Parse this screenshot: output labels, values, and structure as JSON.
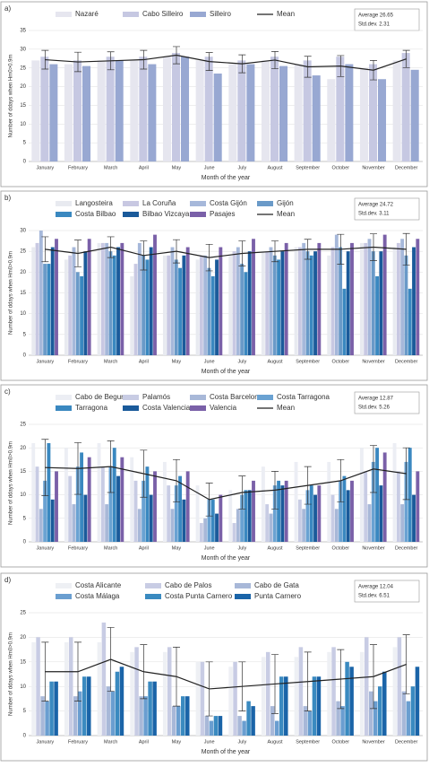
{
  "chart_data": [
    {
      "type": "bar",
      "label": "a)",
      "stats": [
        "Average 26.65",
        "Std.dev. 2.31"
      ],
      "y_label": "Number of ddays when Hm0>0.9m",
      "x_label": "Month of the year",
      "categories": [
        "January",
        "February",
        "March",
        "April",
        "May",
        "June",
        "July",
        "August",
        "September",
        "October",
        "November",
        "December"
      ],
      "ylim": [
        0,
        35
      ],
      "yticks": [
        0,
        5,
        10,
        15,
        20,
        25,
        30,
        35
      ],
      "grid": true,
      "series": [
        {
          "name": "Nazaré",
          "color": "#e6e6ef",
          "values": [
            27,
            26,
            27,
            27,
            28,
            27,
            26,
            27,
            26,
            22,
            25,
            27
          ]
        },
        {
          "name": "Cabo Silleiro",
          "color": "#c6c8e2",
          "values": [
            28,
            27,
            28,
            28,
            29,
            28,
            27,
            28,
            27,
            28,
            26,
            29
          ]
        },
        {
          "name": "Silleiro",
          "color": "#98a8d2",
          "values": [
            26,
            25.5,
            27,
            26,
            28,
            23.5,
            26,
            25.5,
            23,
            26,
            22,
            24.5
          ]
        },
        {
          "name": "Mean",
          "color": "#222222",
          "line": true,
          "values": [
            27.2,
            26.6,
            26.9,
            27.2,
            28.4,
            26.7,
            26.1,
            27.1,
            25.3,
            25.5,
            24.4,
            27.4
          ],
          "errors": [
            2.5,
            2.6,
            2.4,
            2.5,
            2.3,
            2.4,
            2.4,
            2.3,
            2.8,
            2.8,
            2.6,
            2.3
          ]
        }
      ]
    },
    {
      "type": "bar",
      "label": "b)",
      "stats": [
        "Average 24.72",
        "Std.dev. 3.11"
      ],
      "y_label": "Number of ddays when Hm0>0.9m",
      "x_label": "Month of the year",
      "categories": [
        "January",
        "February",
        "March",
        "April",
        "May",
        "June",
        "July",
        "August",
        "September",
        "October",
        "November",
        "December"
      ],
      "ylim": [
        0,
        30
      ],
      "yticks": [
        0,
        5,
        10,
        15,
        20,
        25,
        30
      ],
      "grid": true,
      "series": [
        {
          "name": "Langosteira",
          "color": "#e8eaf0",
          "values": [
            26,
            23,
            27,
            19,
            24,
            23,
            24,
            25,
            26,
            24,
            27,
            26
          ]
        },
        {
          "name": "La Coruña",
          "color": "#c8c8e2",
          "values": [
            27,
            24,
            27,
            22,
            24,
            24,
            25,
            25,
            26,
            26,
            27,
            27
          ]
        },
        {
          "name": "Costa Gijón",
          "color": "#a6b8da",
          "values": [
            30,
            26,
            27,
            27,
            26,
            24,
            26,
            26,
            27,
            29,
            28,
            28
          ]
        },
        {
          "name": "Gijón",
          "color": "#6a9ac8",
          "values": [
            22,
            20,
            25,
            24,
            23,
            21,
            22,
            24,
            25,
            26,
            25,
            24
          ]
        },
        {
          "name": "Costa Bilbao",
          "color": "#3a88c0",
          "values": [
            22,
            19,
            24,
            23,
            21,
            19,
            20,
            23,
            24,
            16,
            19,
            16
          ]
        },
        {
          "name": "Bilbao Vizcaya",
          "color": "#1a5a9a",
          "values": [
            26,
            25,
            26,
            26,
            24,
            23,
            25,
            25,
            25,
            25,
            25,
            26
          ]
        },
        {
          "name": "Pasajes",
          "color": "#7a60a8",
          "values": [
            28,
            28,
            27,
            29,
            26,
            26,
            28,
            27,
            27,
            27,
            29,
            28
          ]
        },
        {
          "name": "Mean",
          "color": "#222222",
          "line": true,
          "values": [
            25.5,
            24.5,
            26,
            24,
            25,
            23.5,
            24.5,
            25,
            25.5,
            25.5,
            26,
            25.5
          ],
          "errors": [
            3,
            3.2,
            2.5,
            3.5,
            2.8,
            3.2,
            3,
            2.5,
            2.4,
            3.6,
            3.2,
            3.8
          ]
        }
      ]
    },
    {
      "type": "bar",
      "label": "c)",
      "stats": [
        "Average 12.87",
        "Std.dev. 5.26"
      ],
      "y_label": "Number of ddays when Hm0>0.9m",
      "x_label": "Month of the year",
      "categories": [
        "January",
        "February",
        "March",
        "April",
        "May",
        "June",
        "July",
        "August",
        "September",
        "October",
        "November",
        "December"
      ],
      "ylim": [
        0,
        25
      ],
      "yticks": [
        0,
        5,
        10,
        15,
        20,
        25
      ],
      "grid": true,
      "series": [
        {
          "name": "Cabo de Begur",
          "color": "#eceef4",
          "values": [
            21,
            20,
            21,
            18,
            17,
            12,
            11,
            16,
            17,
            17,
            20,
            21
          ]
        },
        {
          "name": "Palamós",
          "color": "#c8cce4",
          "values": [
            16,
            14,
            16,
            13,
            12,
            4,
            4,
            8,
            9,
            10,
            15,
            15
          ]
        },
        {
          "name": "Costa Barcelona",
          "color": "#a8b8d8",
          "values": [
            7,
            8,
            8,
            7,
            7,
            5,
            7,
            6,
            7,
            7,
            8,
            8
          ]
        },
        {
          "name": "Costa Tarragona",
          "color": "#6aa2d2",
          "values": [
            13,
            16,
            16,
            13,
            12,
            9,
            10,
            12,
            11,
            13,
            17,
            17
          ]
        },
        {
          "name": "Tarragona",
          "color": "#3a88c0",
          "values": [
            21,
            19,
            20,
            16,
            14,
            9,
            11,
            13,
            12,
            14,
            20,
            20
          ]
        },
        {
          "name": "Costa Valencia",
          "color": "#1a5a9a",
          "values": [
            9,
            10,
            14,
            10,
            9,
            6,
            11,
            12,
            10,
            11,
            12,
            10
          ]
        },
        {
          "name": "Valencia",
          "color": "#7a60a8",
          "values": [
            15,
            18,
            18,
            15,
            15,
            10,
            13,
            13,
            12,
            13,
            19,
            15
          ]
        },
        {
          "name": "Mean",
          "color": "#222222",
          "line": true,
          "values": [
            15.8,
            15.6,
            16,
            14.5,
            13,
            9,
            10.5,
            11,
            12,
            13,
            15.5,
            14.5
          ],
          "errors": [
            6,
            5.5,
            5.5,
            5,
            4.5,
            3.5,
            3.5,
            4,
            4,
            4.5,
            5,
            5.5
          ]
        }
      ]
    },
    {
      "type": "bar",
      "label": "d)",
      "stats": [
        "Average 12.04",
        "Std.dev. 6.51"
      ],
      "y_label": "Number of ddays when Hm0>0.9m",
      "x_label": "Month of the year",
      "categories": [
        "January",
        "February",
        "March",
        "April",
        "May",
        "June",
        "July",
        "August",
        "September",
        "October",
        "November",
        "December"
      ],
      "ylim": [
        0,
        25
      ],
      "yticks": [
        0,
        5,
        10,
        15,
        20,
        25
      ],
      "grid": true,
      "series": [
        {
          "name": "Costa Alicante",
          "color": "#eef0f4",
          "values": [
            19,
            19,
            19,
            17,
            17,
            15,
            14,
            16,
            16,
            17,
            17,
            18
          ]
        },
        {
          "name": "Cabo de Palos",
          "color": "#c8cce4",
          "values": [
            20,
            20,
            23,
            18,
            18,
            15,
            15,
            17,
            18,
            18,
            20,
            20
          ]
        },
        {
          "name": "Cabo de Gata",
          "color": "#a8b8d8",
          "values": [
            8,
            8,
            10,
            8,
            6,
            4,
            4,
            6,
            6,
            7,
            9,
            9
          ]
        },
        {
          "name": "Costa Málaga",
          "color": "#6a9ed0",
          "values": [
            7,
            9,
            9,
            8,
            6,
            3,
            3,
            3,
            5,
            6,
            7,
            7
          ]
        },
        {
          "name": "Costa Punta Carnero",
          "color": "#3a8ac0",
          "values": [
            11,
            12,
            13,
            11,
            8,
            4,
            7,
            12,
            12,
            15,
            10,
            10
          ]
        },
        {
          "name": "Punta Carnero",
          "color": "#1a64a8",
          "values": [
            11,
            12,
            14,
            11,
            8,
            4,
            6,
            12,
            12,
            14,
            13,
            14
          ]
        },
        {
          "color": "#222222",
          "line": true,
          "values": [
            13,
            13,
            15.5,
            13,
            12,
            9.5,
            10,
            10.5,
            11,
            11.5,
            12,
            14.5
          ],
          "errors": [
            6,
            6,
            6.5,
            5.5,
            6,
            5.5,
            5,
            6,
            6,
            6,
            6.5,
            6
          ]
        }
      ]
    }
  ]
}
